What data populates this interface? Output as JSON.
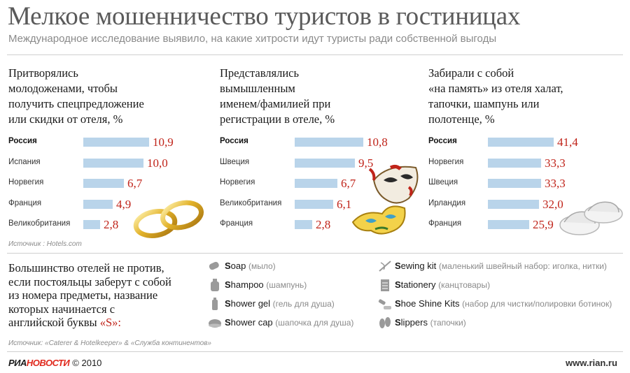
{
  "title": "Мелкое мошенничество туристов в гостиницах",
  "subtitle": "Международное исследование выявило, на какие хитрости идут туристы ради собственной выгоды",
  "chart_data": [
    {
      "type": "bar",
      "title_lines": [
        "Притворялись",
        "молодоженами, чтобы",
        "получить спецпредложение",
        "или скидки от отеля, %"
      ],
      "categories": [
        "Россия",
        "Испания",
        "Норвегия",
        "Франция",
        "Великобритания"
      ],
      "values": [
        10.9,
        10.0,
        6.7,
        4.9,
        2.8
      ],
      "labels": [
        "10,9",
        "10,0",
        "6,7",
        "4,9",
        "2,8"
      ]
    },
    {
      "type": "bar",
      "title_lines": [
        "Представлялись",
        "вымышленным",
        "именем/фамилией при",
        "регистрации в отеле, %"
      ],
      "categories": [
        "Россия",
        "Швеция",
        "Норвегия",
        "Великобритания",
        "Франция"
      ],
      "values": [
        10.8,
        9.5,
        6.7,
        6.1,
        2.8
      ],
      "labels": [
        "10,8",
        "9,5",
        "6,7",
        "6,1",
        "2,8"
      ]
    },
    {
      "type": "bar",
      "title_lines": [
        "Забирали с собой",
        "«на память» из отеля халат,",
        "тапочки, шампунь или",
        "полотенце, %"
      ],
      "categories": [
        "Россия",
        "Норвегия",
        "Швеция",
        "Ирландия",
        "Франция"
      ],
      "values": [
        41.4,
        33.3,
        33.3,
        32.0,
        25.9
      ],
      "labels": [
        "41,4",
        "33,3",
        "33,3",
        "32,0",
        "25,9"
      ]
    }
  ],
  "source1": "Источник : Hotels.com",
  "bottom": {
    "text_lines": [
      "Большинство отелей не против,",
      "если постояльцы заберут с собой",
      "из номера предметы, название",
      "которых начинается с",
      "английской буквы"
    ],
    "letter": "«S»:",
    "items": [
      {
        "first": "S",
        "rest": "oap",
        "ru": "(мыло)",
        "icon": "soap-icon"
      },
      {
        "first": "S",
        "rest": "hampoo",
        "ru": "(шампунь)",
        "icon": "shampoo-icon"
      },
      {
        "first": "S",
        "rest": "hower gel",
        "ru": "(гель для душа)",
        "icon": "shower-gel-icon"
      },
      {
        "first": "S",
        "rest": "hower cap",
        "ru": "(шапочка для душа)",
        "icon": "shower-cap-icon"
      },
      {
        "first": "S",
        "rest": "ewing kit",
        "ru": "(маленький швейный набор: иголка, нитки)",
        "icon": "sewing-kit-icon"
      },
      {
        "first": "S",
        "rest": "tationery",
        "ru": "(канцтовары)",
        "icon": "stationery-icon"
      },
      {
        "first": "S",
        "rest": "hoe Shine Kits",
        "ru": "(набор для чистки/полировки ботинок)",
        "icon": "shoe-shine-icon"
      },
      {
        "first": "S",
        "rest": "lippers",
        "ru": "(тапочки)",
        "icon": "slippers-icon"
      }
    ]
  },
  "source2": "Источник: «Caterer & Hotelkeeper» & «Служба континентов»",
  "footer": {
    "logo_a": "РИА",
    "logo_b": "НОВОСТИ",
    "copyright": "© 2010",
    "site": "www.rian.ru"
  },
  "colors": {
    "bar": "#b9d4ea",
    "value": "#c0241a",
    "accent": "#e0291d"
  }
}
